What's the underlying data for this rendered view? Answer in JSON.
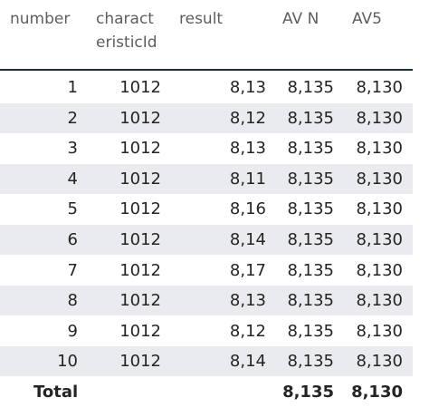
{
  "table": {
    "columns": [
      "number",
      "charact\neristicId",
      "result",
      "AV N",
      "AV5"
    ],
    "rows": [
      [
        "1",
        "1012",
        "8,13",
        "8,135",
        "8,130"
      ],
      [
        "2",
        "1012",
        "8,12",
        "8,135",
        "8,130"
      ],
      [
        "3",
        "1012",
        "8,13",
        "8,135",
        "8,130"
      ],
      [
        "4",
        "1012",
        "8,11",
        "8,135",
        "8,130"
      ],
      [
        "5",
        "1012",
        "8,16",
        "8,135",
        "8,130"
      ],
      [
        "6",
        "1012",
        "8,14",
        "8,135",
        "8,130"
      ],
      [
        "7",
        "1012",
        "8,17",
        "8,135",
        "8,130"
      ],
      [
        "8",
        "1012",
        "8,13",
        "8,135",
        "8,130"
      ],
      [
        "9",
        "1012",
        "8,12",
        "8,135",
        "8,130"
      ],
      [
        "10",
        "1012",
        "8,14",
        "8,135",
        "8,130"
      ]
    ],
    "total": {
      "label": "Total",
      "av_n": "8,135",
      "av5": "8,130"
    }
  }
}
